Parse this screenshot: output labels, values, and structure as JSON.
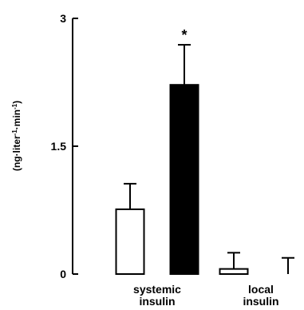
{
  "chart_data": {
    "type": "bar",
    "ylabel_parts": [
      "(ng·liter",
      "-1",
      "·min",
      "-1",
      ")"
    ],
    "ylim": [
      0,
      3
    ],
    "yticks": [
      "0",
      "1.5",
      "3"
    ],
    "ytick_values": [
      0,
      1.5,
      3
    ],
    "grid": false,
    "groups": [
      {
        "label_lines": [
          "systemic",
          "insulin"
        ],
        "bars": [
          {
            "value": 0.76,
            "error": 0.3,
            "fill": "white"
          },
          {
            "value": 2.22,
            "error": 0.47,
            "fill": "black",
            "annotation": "*"
          }
        ]
      },
      {
        "label_lines": [
          "local",
          "insulin"
        ],
        "bars": [
          {
            "value": 0.06,
            "error": 0.19,
            "fill": "white"
          },
          {
            "value": 0.0,
            "error": 0.19,
            "fill": "black"
          }
        ]
      }
    ]
  }
}
